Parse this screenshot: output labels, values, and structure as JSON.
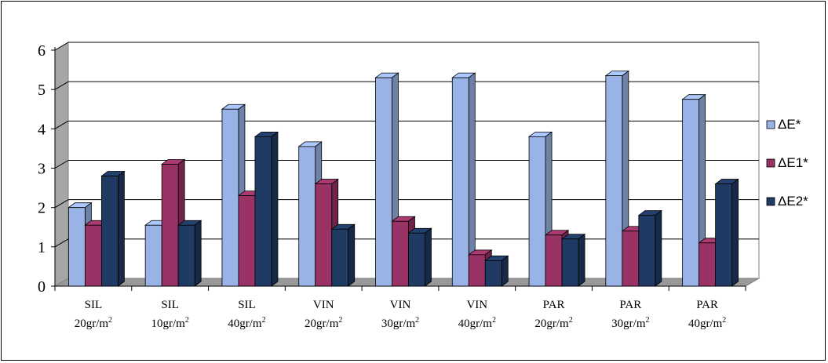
{
  "chart_data": {
    "type": "bar",
    "title": "",
    "xlabel": "",
    "ylabel": "",
    "ylim": [
      0,
      6
    ],
    "yticks": [
      0,
      1,
      2,
      3,
      4,
      5,
      6
    ],
    "grid": true,
    "legend_position": "right",
    "categories": [
      {
        "line1": "SIL",
        "line2": "20gr/m",
        "sup": "2"
      },
      {
        "line1": "SIL",
        "line2": "10gr/m",
        "sup": "2"
      },
      {
        "line1": "SIL",
        "line2": "40gr/m",
        "sup": "2"
      },
      {
        "line1": "VIN",
        "line2": "20gr/m",
        "sup": "2"
      },
      {
        "line1": "VIN",
        "line2": "30gr/m",
        "sup": "2"
      },
      {
        "line1": "VIN",
        "line2": "40gr/m",
        "sup": "2"
      },
      {
        "line1": "PAR",
        "line2": "20gr/m",
        "sup": "2"
      },
      {
        "line1": "PAR",
        "line2": "30gr/m",
        "sup": "2"
      },
      {
        "line1": "PAR",
        "line2": "40gr/m",
        "sup": "2"
      }
    ],
    "series": [
      {
        "name": "ΔE*",
        "color": "#99B3E6",
        "values": [
          2.0,
          1.55,
          4.5,
          3.55,
          5.3,
          5.3,
          3.8,
          5.35,
          4.75
        ]
      },
      {
        "name": "ΔE1*",
        "color": "#993366",
        "values": [
          1.55,
          3.1,
          2.3,
          2.6,
          1.65,
          0.8,
          1.3,
          1.4,
          1.1
        ]
      },
      {
        "name": "ΔE2*",
        "color": "#1F3A63",
        "values": [
          2.8,
          1.55,
          3.8,
          1.45,
          1.35,
          0.65,
          1.2,
          1.8,
          2.6
        ]
      }
    ]
  }
}
